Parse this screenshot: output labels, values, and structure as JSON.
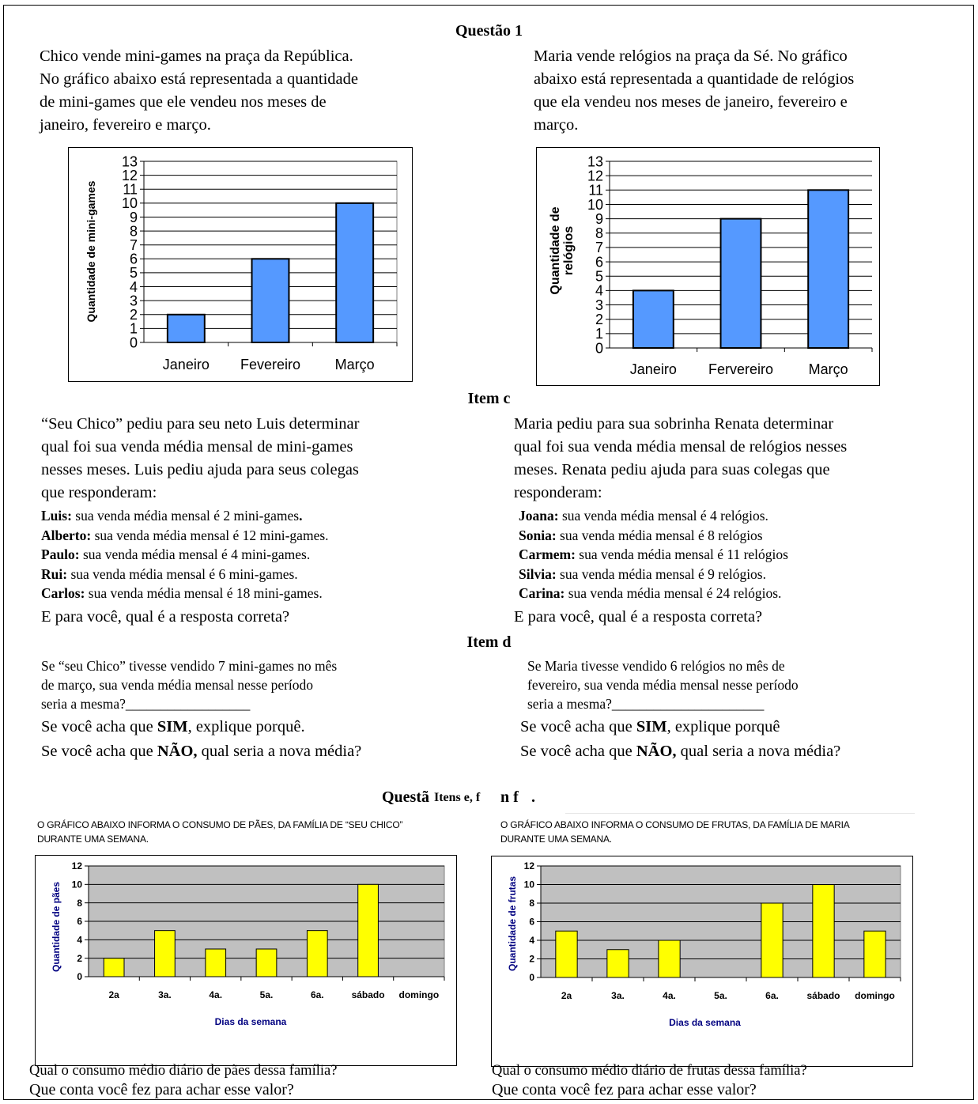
{
  "q1_title": "Questão 1",
  "chico_intro": [
    "Chico vende mini-games na praça da República.",
    "No gráfico abaixo está representada a  quantidade",
    "de mini-games que ele vendeu nos meses de",
    " janeiro, fevereiro e março."
  ],
  "maria_intro": [
    "Maria vende relógios na praça da Sé. No gráfico",
    "abaixo está representada a quantidade de relógios",
    "que ela vendeu nos meses de janeiro, fevereiro e",
    "março."
  ],
  "chart_data": [
    {
      "type": "bar",
      "ylabel": "Quantidade de mini-games",
      "categories": [
        "Janeiro",
        "Fevereiro",
        "Março"
      ],
      "values": [
        2,
        6,
        10
      ],
      "ylim": [
        0,
        13
      ],
      "yticks": [
        "0",
        "1",
        "2",
        "3",
        "4",
        "5",
        "6",
        "7",
        "8",
        "9",
        "10",
        "11",
        "12",
        "13"
      ],
      "bar_color": "#5599ff"
    },
    {
      "type": "bar",
      "ylabel_lines": [
        "Quantidade de",
        "relógios"
      ],
      "categories": [
        "Janeiro",
        "Fervereiro",
        "Março"
      ],
      "values": [
        4,
        9,
        11
      ],
      "ylim": [
        0,
        13
      ],
      "yticks": [
        "0",
        "1",
        "2",
        "3",
        "4",
        "5",
        "6",
        "7",
        "8",
        "9",
        "10",
        "11",
        "12",
        "13"
      ],
      "bar_color": "#5599ff"
    },
    {
      "type": "bar",
      "ylabel": "Quantidade de pães",
      "xlabel": "Dias da semana",
      "categories": [
        "2a",
        "3a.",
        "4a.",
        "5a.",
        "6a.",
        "sábado",
        "domingo"
      ],
      "values": [
        2,
        5,
        3,
        3,
        5,
        10,
        0
      ],
      "ylim": [
        0,
        12
      ],
      "yticks": [
        "0",
        "2",
        "4",
        "6",
        "8",
        "10",
        "12"
      ],
      "bar_color": "#ffff00",
      "plot_bg": "#c0c0c0"
    },
    {
      "type": "bar",
      "ylabel": "Quantidade de frutas",
      "xlabel": "Dias da semana",
      "categories": [
        "2a",
        "3a.",
        "4a.",
        "5a.",
        "6a.",
        "sábado",
        "domingo"
      ],
      "values": [
        5,
        3,
        4,
        0,
        8,
        10,
        5
      ],
      "ylim": [
        0,
        12
      ],
      "yticks": [
        "0",
        "2",
        "4",
        "6",
        "8",
        "10",
        "12"
      ],
      "bar_color": "#ffff00",
      "plot_bg": "#c0c0c0"
    }
  ],
  "item_c_title": "Item c",
  "chico_c_intro": [
    "“Seu Chico” pediu para seu neto Luis determinar",
    "qual foi sua venda média mensal de mini-games",
    "nesses meses. Luis pediu ajuda para seus colegas",
    "que responderam:"
  ],
  "chico_answers": [
    {
      "name": "Luis:",
      "text": " sua venda média mensal é 2 mini-games",
      "tail": "."
    },
    {
      "name": "Alberto:",
      "text": " sua venda média mensal é 12 mini-games.",
      "tail": ""
    },
    {
      "name": "Paulo:",
      "text": " sua venda média mensal é 4 mini-games.",
      "tail": ""
    },
    {
      "name": "Rui:",
      "text": " sua venda média mensal é 6 mini-games.",
      "tail": ""
    },
    {
      "name": "Carlos:",
      "text": " sua venda média mensal é 18 mini-games.",
      "tail": ""
    }
  ],
  "chico_c_question": "E para você, qual é a resposta correta?",
  "maria_c_intro": [
    "Maria pediu para sua sobrinha Renata determinar",
    "qual foi sua venda média mensal de relógios nesses",
    "meses. Renata pediu ajuda para suas colegas que",
    "responderam:"
  ],
  "maria_answers": [
    {
      "name": "Joana:",
      "text": " sua venda média mensal é 4 relógios."
    },
    {
      "name": "Sonia:",
      "text": " sua venda média mensal é 8 relógios"
    },
    {
      "name": "Carmem:",
      "text": " sua venda média mensal é 11 relógios"
    },
    {
      "name": "Silvia:",
      "text": " sua venda média mensal é 9 relógios."
    },
    {
      "name": "Carina:",
      "text": " sua venda média mensal é 24 relógios."
    }
  ],
  "maria_c_question": "E para você, qual é a resposta correta?",
  "item_d_title": "Item d",
  "chico_d_lines": [
    "Se “seu Chico” tivesse vendido 7 mini-games no mês",
    "de março, sua venda média mensal nesse período",
    "seria a mesma?__________________"
  ],
  "chico_d_yes": {
    "a": "Se você acha que ",
    "b": "SIM",
    "c": ", explique porquê."
  },
  "chico_d_no": {
    "a": "Se você acha que ",
    "b": "NÃO,",
    "c": " qual seria a nova média?"
  },
  "maria_d_lines": [
    "Se Maria tivesse vendido 6 relógios no mês de",
    "fevereiro, sua venda média mensal nesse período",
    "seria a mesma?______________________"
  ],
  "maria_d_yes": {
    "a": "Se você acha que ",
    "b": "SIM",
    "c": ", explique porquê"
  },
  "maria_d_no": {
    "a": "Se você acha que ",
    "b": "NÃO,",
    "c": " qual seria a nova média?"
  },
  "items_ef_title_a": "Questã",
  "items_ef_title_b": "Itens e, f",
  "items_ef_title_c": "n f",
  "items_ef_title_d": ".",
  "chico_ef_caption": [
    "O GRÁFICO ABAIXO INFORMA O CONSUMO DE PÃES, DA FAMÍLIA DE “SEU CHICO”",
    "DURANTE UMA SEMANA."
  ],
  "maria_ef_caption": [
    "O GRÁFICO ABAIXO INFORMA O CONSUMO DE FRUTAS, DA FAMÍLIA DE MARIA",
    "DURANTE UMA SEMANA."
  ],
  "chico_ef_q1": "Qual o consumo médio diário de pães dessa família?",
  "chico_ef_q2": "Que conta você fez para achar esse valor?",
  "maria_ef_q1": "Qual o consumo médio diário de frutas dessa família?",
  "maria_ef_q2": "Que conta você fez para achar esse valor?"
}
